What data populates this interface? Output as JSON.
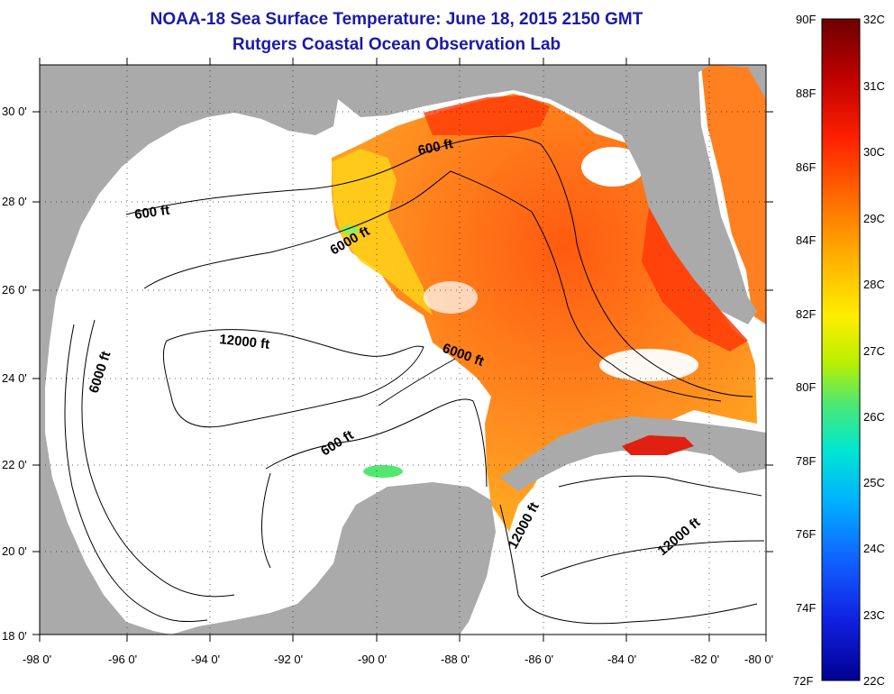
{
  "title": {
    "line1": "NOAA-18 Sea Surface Temperature:  June 18, 2015 2150 GMT",
    "line2": "Rutgers Coastal Ocean Observation Lab"
  },
  "axes": {
    "x_ticks": [
      "-98 0'",
      "-96 0'",
      "-94 0'",
      "-92 0'",
      "-90 0'",
      "-88 0'",
      "-86 0'",
      "-84 0'",
      "-82 0'",
      "-80 0'"
    ],
    "y_ticks": [
      "30 0'",
      "28 0'",
      "26 0'",
      "24 0'",
      "22 0'",
      "20 0'",
      "18 0'"
    ],
    "lon_range": [
      -98,
      -80
    ],
    "lat_range": [
      18,
      31.3
    ]
  },
  "contours": [
    "600 ft",
    "6000 ft",
    "12000 ft",
    "6000 ft",
    "6000 ft",
    "600 ft",
    "600 ft",
    "12000 ft",
    "12000 ft"
  ],
  "colorbar": {
    "fahrenheit": [
      "90F",
      "88F",
      "86F",
      "84F",
      "82F",
      "80F",
      "78F",
      "76F",
      "74F",
      "72F"
    ],
    "celsius": [
      "32C",
      "31C",
      "30C",
      "29C",
      "28C",
      "27C",
      "26C",
      "25C",
      "24C",
      "23C",
      "22C"
    ],
    "colors": [
      "#7a0000",
      "#c80000",
      "#ff2400",
      "#ff6a00",
      "#ffb000",
      "#ffee00",
      "#b8f000",
      "#50e870",
      "#00e8d0",
      "#00b0ff",
      "#1060ff",
      "#1020e0",
      "#000090"
    ]
  },
  "colors": {
    "land": "#aaaaaa",
    "no_data": "#ffffff",
    "title": "#1a1aa8"
  }
}
